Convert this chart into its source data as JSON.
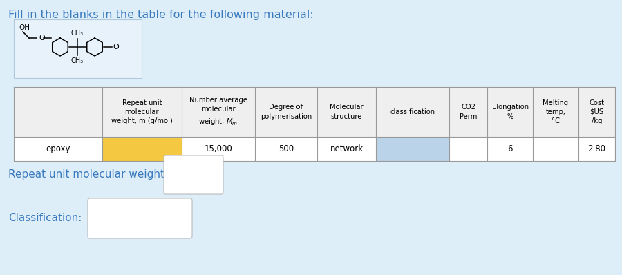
{
  "title": "Fill in the blanks in the table for the following material:",
  "title_color": "#3a7abf",
  "background_color": "#ddeef8",
  "table_header_bg": "#efefef",
  "table_row_bg": "#ffffff",
  "table_border_color": "#999999",
  "molecule_box_bg": "#e8f2fa",
  "yellow_cell_color": "#f5c842",
  "blue_cell_color": "#bad3e8",
  "col_headers": [
    "Repeat unit\nmolecular\nweight, m (g/mol)",
    "Number average\nmolecular\nweight, $\\overline{M_m}$",
    "Degree of\npolymerisation",
    "Molecular\nstructure",
    "classification",
    "CO2\nPerm",
    "Elongation\n%",
    "Melting\ntemp,\n°C",
    "Cost\n$US\n/kg"
  ],
  "row_label": "epoxy",
  "row_values": [
    "",
    "15,000",
    "500",
    "network",
    "",
    "-",
    "6",
    "-",
    "2.80"
  ],
  "yellow_col": 0,
  "blue_col": 4,
  "bottom_label1": "Repeat unit molecular weight:",
  "bottom_label2": "Classification:",
  "label_color": "#3a7abf"
}
